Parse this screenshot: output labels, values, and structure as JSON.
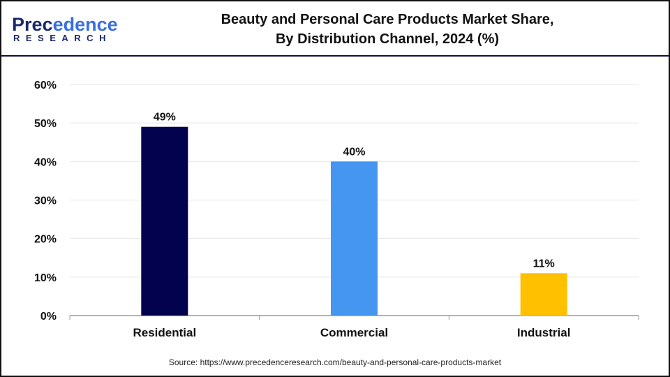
{
  "logo": {
    "line1_a": "Prec",
    "line1_b": "edence",
    "line2": "RESEARCH"
  },
  "chart_data": {
    "type": "bar",
    "title": "Beauty and Personal Care Products Market Share, By Distribution Channel, 2024 (%)",
    "title_lines": [
      "Beauty and Personal Care Products Market Share,",
      "By Distribution Channel, 2024 (%)"
    ],
    "categories": [
      "Residential",
      "Commercial",
      "Industrial"
    ],
    "values": [
      49,
      40,
      11
    ],
    "data_labels": [
      "49%",
      "40%",
      "11%"
    ],
    "colors": [
      "#02024f",
      "#4496f0",
      "#ffc000"
    ],
    "xlabel": "",
    "ylabel": "",
    "ylim": [
      0,
      60
    ],
    "yticks": [
      0,
      10,
      20,
      30,
      40,
      50,
      60
    ],
    "ytick_labels": [
      "0%",
      "10%",
      "20%",
      "30%",
      "40%",
      "50%",
      "60%"
    ],
    "grid": true
  },
  "source": "Source: https://www.precedenceresearch.com/beauty-and-personal-care-products-market"
}
